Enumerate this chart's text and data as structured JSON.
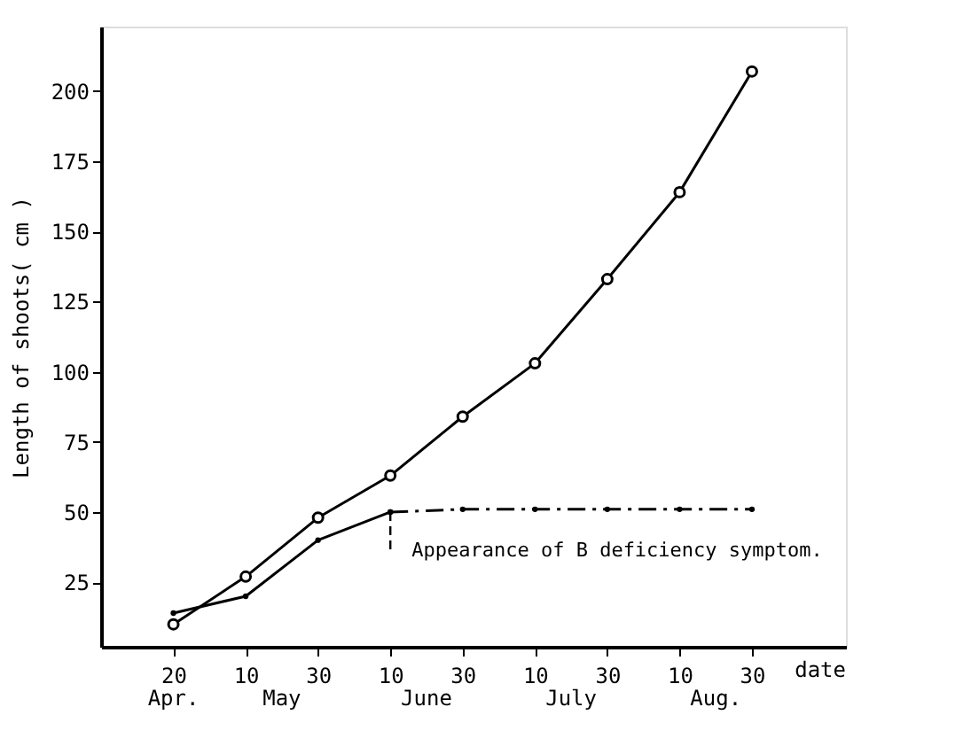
{
  "chart_data": {
    "type": "line",
    "ylabel": "Length of shoots( cm )",
    "xlabel": "date",
    "categories": [
      "20",
      "10",
      "30",
      "10",
      "30",
      "10",
      "30",
      "10",
      "30"
    ],
    "series": [
      {
        "color": "#000000",
        "marker": "circle",
        "line_style": "solid",
        "values": [
          10,
          27,
          48,
          63,
          84,
          103,
          133,
          164,
          207
        ]
      },
      {
        "color": "#000000",
        "marker": "circle",
        "line_style": "solid",
        "values": [
          14,
          20,
          40,
          50,
          null,
          null,
          null,
          null,
          null
        ]
      },
      {
        "color": "#000000",
        "marker": "circle",
        "line_style": "dashed",
        "values": [
          null,
          null,
          null,
          50,
          51,
          51,
          51,
          51,
          51
        ]
      }
    ],
    "ylim": [
      2,
      223
    ],
    "yticks": [
      25,
      50,
      75,
      100,
      125,
      150,
      175,
      200
    ],
    "grid": false,
    "annotations": [
      "Apr.",
      "May",
      "June",
      "July",
      "Aug.",
      "Appearance of B deficiency symptom."
    ]
  }
}
